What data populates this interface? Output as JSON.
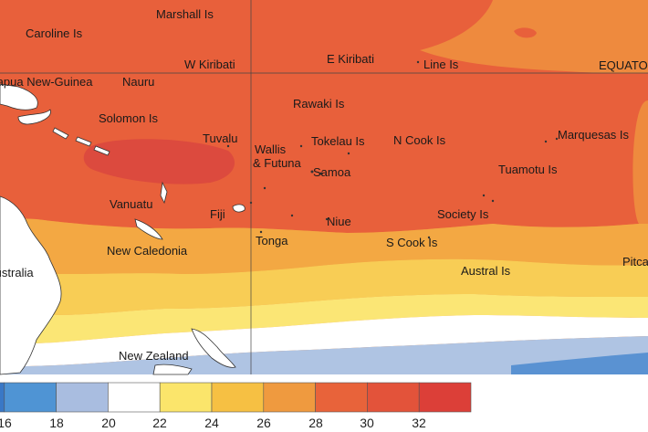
{
  "map": {
    "equator_label": "EQUATOR",
    "labels": {
      "marshall": "Marshall Is",
      "caroline": "Caroline Is",
      "png": "Papua New-Guinea",
      "nauru": "Nauru",
      "w_kiribati": "W Kiribati",
      "e_kiribati": "E Kiribati",
      "line": "Line Is",
      "rawaki": "Rawaki Is",
      "solomon": "Solomon Is",
      "tuvalu": "Tuvalu",
      "wallis": "Wallis",
      "futuna": "& Futuna",
      "tokelau": "Tokelau Is",
      "n_cook": "N Cook Is",
      "marquesas": "Marquesas Is",
      "samoa": "Samoa",
      "tuamotu": "Tuamotu Is",
      "vanuatu": "Vanuatu",
      "fiji": "Fiji",
      "niue": "Niue",
      "society": "Society Is",
      "new_caledonia": "New Caledonia",
      "tonga": "Tonga",
      "s_cook": "S Cook Is",
      "australia": "Australia",
      "austral": "Austral Is",
      "pitcairn": "Pitcairn",
      "new_zealand": "New Zealand"
    }
  },
  "legend": {
    "ticks": [
      "16",
      "18",
      "20",
      "22",
      "24",
      "26",
      "28",
      "30",
      "32"
    ],
    "colors": [
      "#3a78c6",
      "#4f94d4",
      "#a9bde0",
      "#ffffff",
      "#fbe56b",
      "#f6c043",
      "#ef9a3f",
      "#e8633a",
      "#e3533a",
      "#dc3f38"
    ]
  },
  "colors": {
    "sst_32": "#dc4a3e",
    "sst_30": "#e8603b",
    "sst_28": "#ee8a3e",
    "sst_26": "#f3a843",
    "sst_24": "#f8cd55",
    "sst_22": "#fbe675",
    "sst_20": "#ffffff",
    "sst_18": "#afc4e3",
    "sst_16": "#5a92d2",
    "land": "#ffffff"
  }
}
